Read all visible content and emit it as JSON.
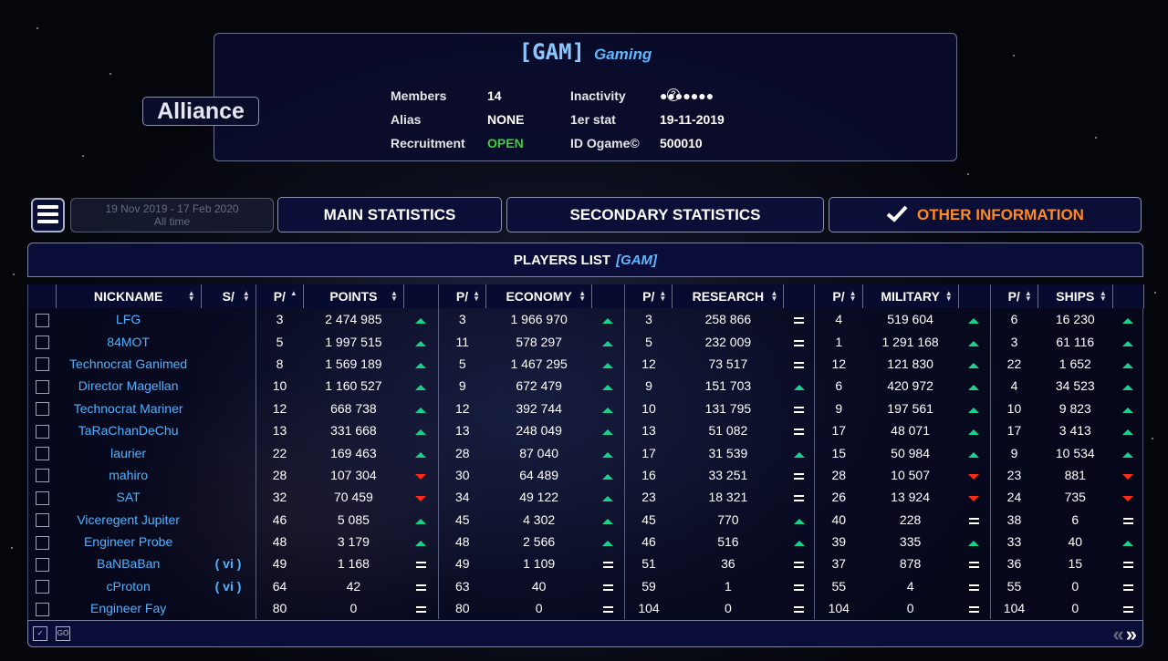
{
  "alliance": {
    "tag": "[GAM]",
    "name": "Gaming",
    "badge": "Alliance",
    "info": {
      "members_label": "Members",
      "members_value": "14",
      "inactivity_label": "Inactivity",
      "inactivity_value": "●●●●●●●",
      "alias_label": "Alias",
      "alias_value": "NONE",
      "first_stat_label": "1er stat",
      "first_stat_value": "19-11-2019",
      "recruitment_label": "Recruitment",
      "recruitment_value": "OPEN",
      "id_label": "ID Ogame©",
      "id_value": "500010"
    }
  },
  "toolbar": {
    "date_range": "19 Nov 2019 - 17 Feb 2020",
    "period": "All time",
    "main_stats": "MAIN STATISTICS",
    "secondary_stats": "SECONDARY STATISTICS",
    "other_info": "OTHER INFORMATION"
  },
  "players_list": {
    "title": "PLAYERS LIST",
    "tag": "[GAM]",
    "headers": {
      "nickname": "NICKNAME",
      "status": "S/",
      "p1": "P/",
      "points": "POINTS",
      "p2": "P/",
      "economy": "ECONOMY",
      "p3": "P/",
      "research": "RESEARCH",
      "p4": "P/",
      "military": "MILITARY",
      "p5": "P/",
      "ships": "SHIPS"
    },
    "rows": [
      {
        "nick": "LFG",
        "vac": "",
        "pp": "3",
        "pts": "2 474 985",
        "pt": "up",
        "ep": "3",
        "eco": "1 966 970",
        "et": "up",
        "rp": "3",
        "res": "258 866",
        "rt": "eq",
        "mp": "4",
        "mil": "519 604",
        "mt": "up",
        "sp": "6",
        "shp": "16 230",
        "st": "up"
      },
      {
        "nick": "84MOT",
        "vac": "",
        "pp": "5",
        "pts": "1 997 515",
        "pt": "up",
        "ep": "11",
        "eco": "578 297",
        "et": "up",
        "rp": "5",
        "res": "232 009",
        "rt": "eq",
        "mp": "1",
        "mil": "1 291 168",
        "mt": "up",
        "sp": "3",
        "shp": "61 116",
        "st": "up"
      },
      {
        "nick": "Technocrat Ganimed",
        "vac": "",
        "pp": "8",
        "pts": "1 569 189",
        "pt": "up",
        "ep": "5",
        "eco": "1 467 295",
        "et": "up",
        "rp": "12",
        "res": "73 517",
        "rt": "eq",
        "mp": "12",
        "mil": "121 830",
        "mt": "up",
        "sp": "22",
        "shp": "1 652",
        "st": "up"
      },
      {
        "nick": "Director Magellan",
        "vac": "",
        "pp": "10",
        "pts": "1 160 527",
        "pt": "up",
        "ep": "9",
        "eco": "672 479",
        "et": "up",
        "rp": "9",
        "res": "151 703",
        "rt": "up",
        "mp": "6",
        "mil": "420 972",
        "mt": "up",
        "sp": "4",
        "shp": "34 523",
        "st": "up"
      },
      {
        "nick": "Technocrat Mariner",
        "vac": "",
        "pp": "12",
        "pts": "668 738",
        "pt": "up",
        "ep": "12",
        "eco": "392 744",
        "et": "up",
        "rp": "10",
        "res": "131 795",
        "rt": "eq",
        "mp": "9",
        "mil": "197 561",
        "mt": "up",
        "sp": "10",
        "shp": "9 823",
        "st": "up"
      },
      {
        "nick": "TaRaChanDeChu",
        "vac": "",
        "pp": "13",
        "pts": "331 668",
        "pt": "up",
        "ep": "13",
        "eco": "248 049",
        "et": "up",
        "rp": "13",
        "res": "51 082",
        "rt": "eq",
        "mp": "17",
        "mil": "48 071",
        "mt": "up",
        "sp": "17",
        "shp": "3 413",
        "st": "up"
      },
      {
        "nick": "laurier",
        "vac": "",
        "pp": "22",
        "pts": "169 463",
        "pt": "up",
        "ep": "28",
        "eco": "87 040",
        "et": "up",
        "rp": "17",
        "res": "31 539",
        "rt": "up",
        "mp": "15",
        "mil": "50 984",
        "mt": "up",
        "sp": "9",
        "shp": "10 534",
        "st": "up"
      },
      {
        "nick": "mahiro",
        "vac": "",
        "pp": "28",
        "pts": "107 304",
        "pt": "down",
        "ep": "30",
        "eco": "64 489",
        "et": "up",
        "rp": "16",
        "res": "33 251",
        "rt": "eq",
        "mp": "28",
        "mil": "10 507",
        "mt": "down",
        "sp": "23",
        "shp": "881",
        "st": "down"
      },
      {
        "nick": "SAT",
        "vac": "",
        "pp": "32",
        "pts": "70 459",
        "pt": "down",
        "ep": "34",
        "eco": "49 122",
        "et": "up",
        "rp": "23",
        "res": "18 321",
        "rt": "eq",
        "mp": "26",
        "mil": "13 924",
        "mt": "down",
        "sp": "24",
        "shp": "735",
        "st": "down"
      },
      {
        "nick": "Viceregent Jupiter",
        "vac": "",
        "pp": "46",
        "pts": "5 085",
        "pt": "up",
        "ep": "45",
        "eco": "4 302",
        "et": "up",
        "rp": "45",
        "res": "770",
        "rt": "up",
        "mp": "40",
        "mil": "228",
        "mt": "eq",
        "sp": "38",
        "shp": "6",
        "st": "eq"
      },
      {
        "nick": "Engineer Probe",
        "vac": "",
        "pp": "48",
        "pts": "3 179",
        "pt": "up",
        "ep": "48",
        "eco": "2 566",
        "et": "up",
        "rp": "46",
        "res": "516",
        "rt": "up",
        "mp": "39",
        "mil": "335",
        "mt": "up",
        "sp": "33",
        "shp": "40",
        "st": "up"
      },
      {
        "nick": "BaNBaBan",
        "vac": "( vi )",
        "pp": "49",
        "pts": "1 168",
        "pt": "eq",
        "ep": "49",
        "eco": "1 109",
        "et": "eq",
        "rp": "51",
        "res": "36",
        "rt": "eq",
        "mp": "37",
        "mil": "878",
        "mt": "eq",
        "sp": "36",
        "shp": "15",
        "st": "eq"
      },
      {
        "nick": "cProton",
        "vac": "( vi )",
        "pp": "64",
        "pts": "42",
        "pt": "eq",
        "ep": "63",
        "eco": "40",
        "et": "eq",
        "rp": "59",
        "res": "1",
        "rt": "eq",
        "mp": "55",
        "mil": "4",
        "mt": "eq",
        "sp": "55",
        "shp": "0",
        "st": "eq"
      },
      {
        "nick": "Engineer Fay",
        "vac": "",
        "pp": "80",
        "pts": "0",
        "pt": "eq",
        "ep": "80",
        "eco": "0",
        "et": "eq",
        "rp": "104",
        "res": "0",
        "rt": "eq",
        "mp": "104",
        "mil": "0",
        "mt": "eq",
        "sp": "104",
        "shp": "0",
        "st": "eq"
      }
    ]
  },
  "colors": {
    "accent_orange": "#ff8a1e",
    "link_blue": "#4fb3ff",
    "trend_up": "#19d18a",
    "trend_down": "#ff2a1a",
    "open_green": "#3ad13a"
  }
}
